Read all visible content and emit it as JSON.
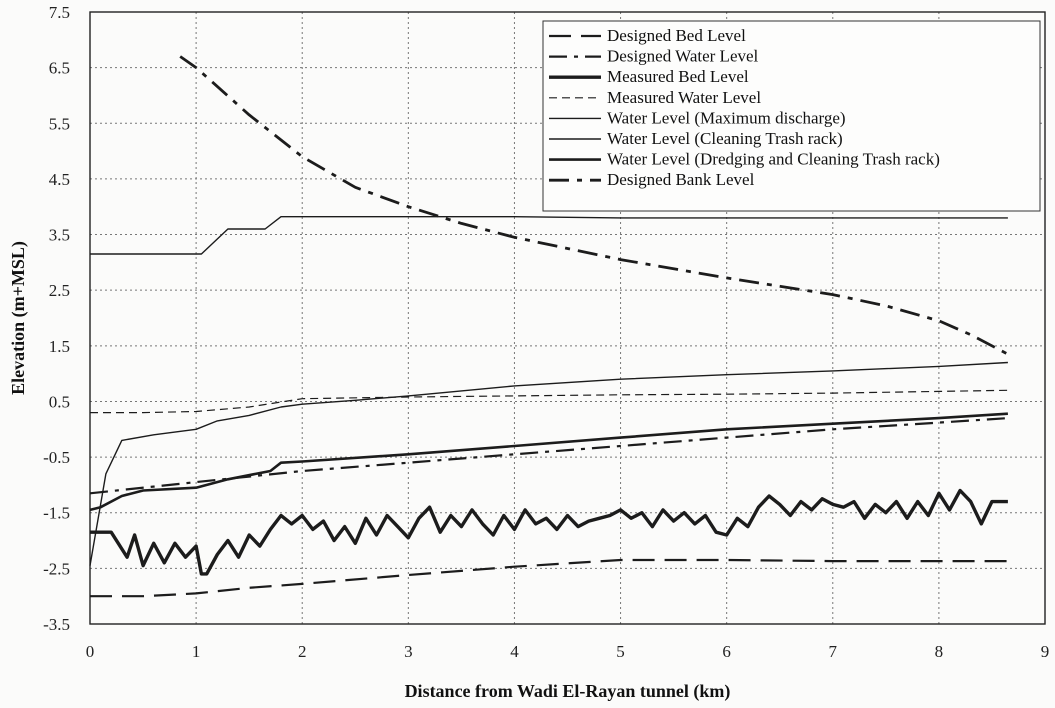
{
  "chart_data": {
    "type": "line",
    "title": "",
    "xlabel": "Distance from Wadi El-Rayan tunnel (km)",
    "ylabel": "Elevation (m+MSL)",
    "xlim": [
      0,
      9
    ],
    "ylim": [
      -3.5,
      7.5
    ],
    "x_ticks": [
      "0",
      "1",
      "2",
      "3",
      "4",
      "5",
      "6",
      "7",
      "8",
      "9"
    ],
    "y_ticks": [
      "7.5",
      "6.5",
      "5.5",
      "4.5",
      "3.5",
      "2.5",
      "1.5",
      "0.5",
      "-0.5",
      "-1.5",
      "-2.5",
      "-3.5"
    ],
    "grid": true,
    "legend_position": "top-right",
    "series": [
      {
        "name": "Designed Bed Level",
        "style": "long-dash",
        "x": [
          0,
          0.5,
          1,
          1.5,
          2,
          3,
          4,
          5,
          6,
          7,
          8,
          8.65
        ],
        "y": [
          -3.0,
          -3.0,
          -2.95,
          -2.85,
          -2.78,
          -2.62,
          -2.47,
          -2.35,
          -2.35,
          -2.37,
          -2.37,
          -2.37
        ]
      },
      {
        "name": "Designed Water Level",
        "style": "dash-dot",
        "x": [
          0,
          1,
          2,
          3,
          4,
          5,
          6,
          7,
          8,
          8.65
        ],
        "y": [
          -1.15,
          -0.95,
          -0.75,
          -0.6,
          -0.45,
          -0.3,
          -0.15,
          0.0,
          0.12,
          0.2
        ]
      },
      {
        "name": "Measured Bed Level",
        "style": "thick-solid",
        "x": [
          0,
          0.2,
          0.35,
          0.42,
          0.5,
          0.6,
          0.7,
          0.8,
          0.9,
          1.0,
          1.05,
          1.1,
          1.2,
          1.3,
          1.4,
          1.5,
          1.6,
          1.7,
          1.8,
          1.9,
          2.0,
          2.1,
          2.2,
          2.3,
          2.4,
          2.5,
          2.6,
          2.7,
          2.8,
          2.9,
          3.0,
          3.1,
          3.2,
          3.3,
          3.4,
          3.5,
          3.6,
          3.7,
          3.8,
          3.9,
          4.0,
          4.1,
          4.2,
          4.3,
          4.4,
          4.5,
          4.6,
          4.7,
          4.8,
          4.9,
          5.0,
          5.1,
          5.2,
          5.3,
          5.4,
          5.5,
          5.6,
          5.7,
          5.8,
          5.9,
          6.0,
          6.1,
          6.2,
          6.3,
          6.4,
          6.5,
          6.6,
          6.7,
          6.8,
          6.9,
          7.0,
          7.1,
          7.2,
          7.3,
          7.4,
          7.5,
          7.6,
          7.7,
          7.8,
          7.9,
          8.0,
          8.1,
          8.2,
          8.3,
          8.4,
          8.5,
          8.65
        ],
        "y": [
          -1.85,
          -1.85,
          -2.3,
          -1.9,
          -2.45,
          -2.05,
          -2.4,
          -2.05,
          -2.3,
          -2.1,
          -2.6,
          -2.6,
          -2.25,
          -2.0,
          -2.3,
          -1.9,
          -2.1,
          -1.8,
          -1.55,
          -1.7,
          -1.55,
          -1.8,
          -1.65,
          -2.0,
          -1.75,
          -2.05,
          -1.6,
          -1.9,
          -1.55,
          -1.75,
          -1.95,
          -1.6,
          -1.4,
          -1.85,
          -1.55,
          -1.75,
          -1.45,
          -1.7,
          -1.9,
          -1.55,
          -1.8,
          -1.45,
          -1.7,
          -1.6,
          -1.8,
          -1.55,
          -1.75,
          -1.65,
          -1.6,
          -1.55,
          -1.45,
          -1.6,
          -1.5,
          -1.75,
          -1.45,
          -1.65,
          -1.5,
          -1.7,
          -1.55,
          -1.85,
          -1.9,
          -1.6,
          -1.75,
          -1.4,
          -1.2,
          -1.35,
          -1.55,
          -1.3,
          -1.45,
          -1.25,
          -1.35,
          -1.4,
          -1.3,
          -1.6,
          -1.35,
          -1.5,
          -1.3,
          -1.6,
          -1.3,
          -1.55,
          -1.15,
          -1.45,
          -1.1,
          -1.3,
          -1.7,
          -1.3,
          -1.3
        ]
      },
      {
        "name": "Measured Water Level",
        "style": "thin-dash",
        "x": [
          0,
          0.5,
          1,
          1.5,
          2,
          3,
          4,
          5,
          6,
          7,
          8,
          8.65
        ],
        "y": [
          0.3,
          0.3,
          0.32,
          0.4,
          0.55,
          0.58,
          0.6,
          0.62,
          0.63,
          0.65,
          0.68,
          0.7
        ]
      },
      {
        "name": "Water Level (Maximum discharge)",
        "style": "thin-solid",
        "x": [
          0,
          1.05,
          1.3,
          1.65,
          1.8,
          2,
          3,
          4,
          5,
          6,
          7,
          8,
          8.65
        ],
        "y": [
          3.15,
          3.15,
          3.6,
          3.6,
          3.82,
          3.82,
          3.82,
          3.82,
          3.8,
          3.8,
          3.8,
          3.8,
          3.8
        ]
      },
      {
        "name": "Water Level (Cleaning Trash rack)",
        "style": "thin-solid",
        "x": [
          0,
          0.15,
          0.3,
          0.6,
          1,
          1.2,
          1.5,
          1.8,
          2,
          2.5,
          3,
          4,
          5,
          6,
          7,
          8,
          8.65
        ],
        "y": [
          -2.45,
          -0.8,
          -0.2,
          -0.1,
          0.0,
          0.15,
          0.25,
          0.4,
          0.45,
          0.52,
          0.6,
          0.78,
          0.9,
          0.98,
          1.05,
          1.13,
          1.2
        ]
      },
      {
        "name": "Water Level (Dredging and Cleaning Trash rack)",
        "style": "medium-solid",
        "x": [
          0,
          0.1,
          0.3,
          0.5,
          1,
          1.3,
          1.7,
          1.8,
          2,
          3,
          4,
          5,
          6,
          7,
          8,
          8.65
        ],
        "y": [
          -1.45,
          -1.4,
          -1.2,
          -1.1,
          -1.05,
          -0.9,
          -0.75,
          -0.6,
          -0.58,
          -0.45,
          -0.3,
          -0.15,
          0.0,
          0.1,
          0.2,
          0.28
        ]
      },
      {
        "name": "Designed Bank Level",
        "style": "dash-dot-bold",
        "x": [
          0.85,
          1,
          1.5,
          2,
          2.5,
          3,
          3.5,
          4,
          5,
          6,
          7,
          7.5,
          8,
          8.3,
          8.65
        ],
        "y": [
          6.7,
          6.5,
          5.65,
          4.9,
          4.35,
          4.0,
          3.7,
          3.45,
          3.05,
          2.72,
          2.42,
          2.22,
          1.95,
          1.7,
          1.35
        ]
      }
    ]
  }
}
